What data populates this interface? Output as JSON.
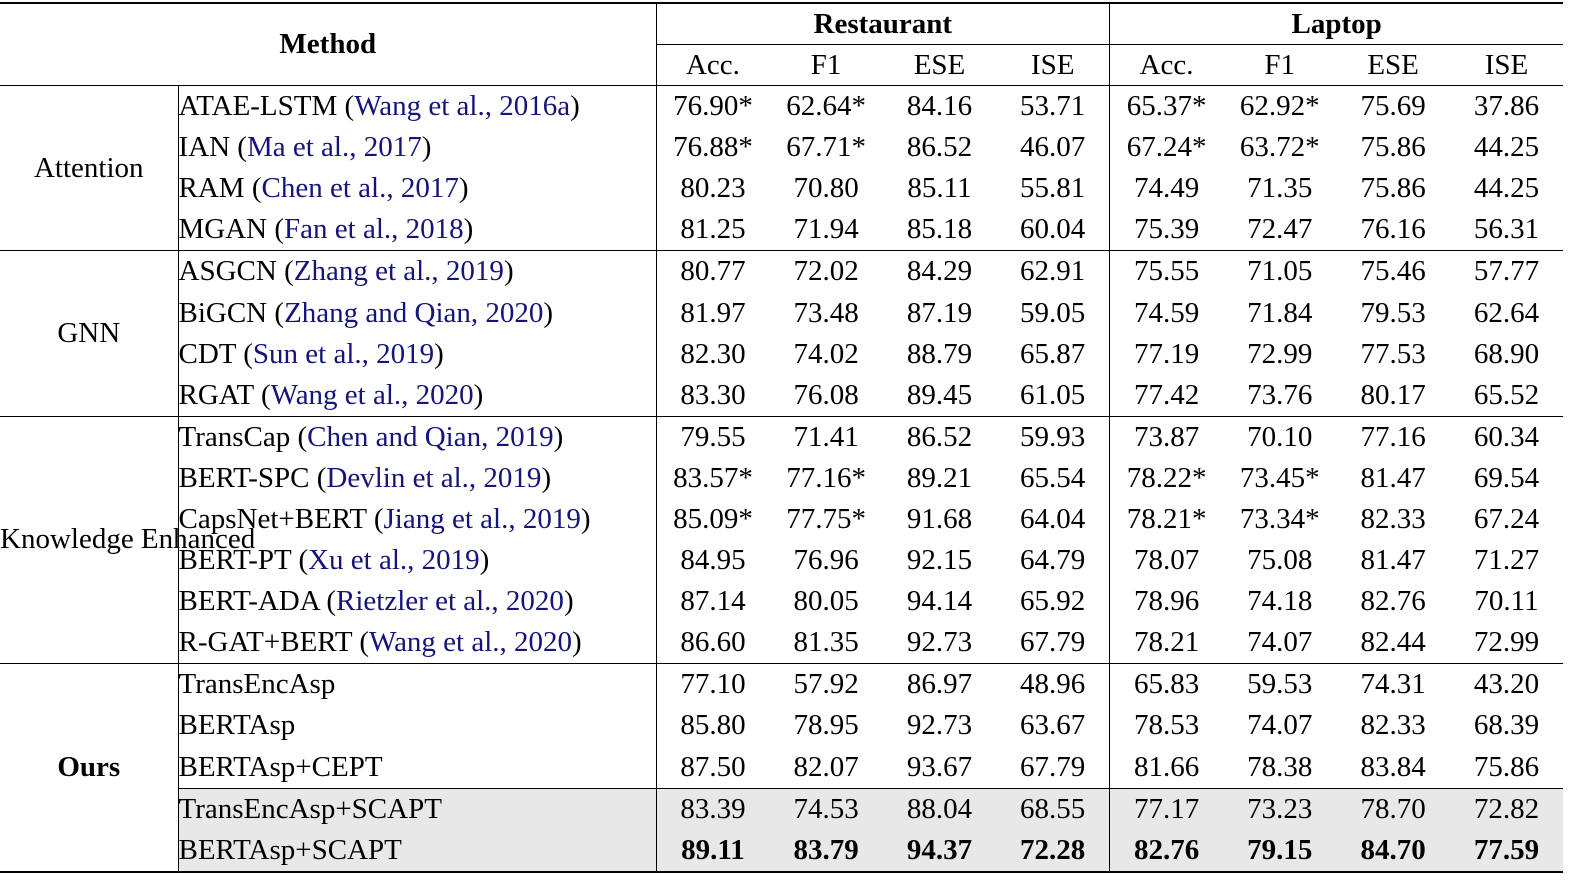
{
  "header": {
    "method_label": "Method",
    "datasets": [
      "Restaurant",
      "Laptop"
    ],
    "metrics": [
      "Acc.",
      "F1",
      "ESE",
      "ISE"
    ]
  },
  "groups": [
    {
      "label": "Attention",
      "bold": false,
      "rows": [
        {
          "name": "ATAE-LSTM",
          "cite": "Wang et al., 2016a",
          "values": [
            "76.90*",
            "62.64*",
            "84.16",
            "53.71",
            "65.37*",
            "62.92*",
            "75.69",
            "37.86"
          ]
        },
        {
          "name": "IAN",
          "cite": "Ma et al., 2017",
          "values": [
            "76.88*",
            "67.71*",
            "86.52",
            "46.07",
            "67.24*",
            "63.72*",
            "75.86",
            "44.25"
          ]
        },
        {
          "name": "RAM",
          "cite": "Chen et al., 2017",
          "values": [
            "80.23",
            "70.80",
            "85.11",
            "55.81",
            "74.49",
            "71.35",
            "75.86",
            "44.25"
          ]
        },
        {
          "name": "MGAN",
          "cite": "Fan et al., 2018",
          "values": [
            "81.25",
            "71.94",
            "85.18",
            "60.04",
            "75.39",
            "72.47",
            "76.16",
            "56.31"
          ]
        }
      ]
    },
    {
      "label": "GNN",
      "bold": false,
      "rows": [
        {
          "name": "ASGCN",
          "cite": "Zhang et al., 2019",
          "values": [
            "80.77",
            "72.02",
            "84.29",
            "62.91",
            "75.55",
            "71.05",
            "75.46",
            "57.77"
          ]
        },
        {
          "name": "BiGCN",
          "cite": "Zhang and Qian, 2020",
          "values": [
            "81.97",
            "73.48",
            "87.19",
            "59.05",
            "74.59",
            "71.84",
            "79.53",
            "62.64"
          ]
        },
        {
          "name": "CDT",
          "cite": "Sun et al., 2019",
          "values": [
            "82.30",
            "74.02",
            "88.79",
            "65.87",
            "77.19",
            "72.99",
            "77.53",
            "68.90"
          ]
        },
        {
          "name": "RGAT",
          "cite": "Wang et al., 2020",
          "values": [
            "83.30",
            "76.08",
            "89.45",
            "61.05",
            "77.42",
            "73.76",
            "80.17",
            "65.52"
          ]
        }
      ]
    },
    {
      "label": "Knowledge Enhanced",
      "bold": false,
      "rows": [
        {
          "name": "TransCap",
          "cite": "Chen and Qian, 2019",
          "values": [
            "79.55",
            "71.41",
            "86.52",
            "59.93",
            "73.87",
            "70.10",
            "77.16",
            "60.34"
          ]
        },
        {
          "name": "BERT-SPC",
          "cite": "Devlin et al., 2019",
          "values": [
            "83.57*",
            "77.16*",
            "89.21",
            "65.54",
            "78.22*",
            "73.45*",
            "81.47",
            "69.54"
          ]
        },
        {
          "name": "CapsNet+BERT",
          "cite": "Jiang et al., 2019",
          "values": [
            "85.09*",
            "77.75*",
            "91.68",
            "64.04",
            "78.21*",
            "73.34*",
            "82.33",
            "67.24"
          ]
        },
        {
          "name": "BERT-PT",
          "cite": "Xu et al., 2019",
          "values": [
            "84.95",
            "76.96",
            "92.15",
            "64.79",
            "78.07",
            "75.08",
            "81.47",
            "71.27"
          ]
        },
        {
          "name": "BERT-ADA",
          "cite": "Rietzler et al., 2020",
          "values": [
            "87.14",
            "80.05",
            "94.14",
            "65.92",
            "78.96",
            "74.18",
            "82.76",
            "70.11"
          ]
        },
        {
          "name": "R-GAT+BERT",
          "cite": "Wang et al., 2020",
          "values": [
            "86.60",
            "81.35",
            "92.73",
            "67.79",
            "78.21",
            "74.07",
            "82.44",
            "72.99"
          ]
        }
      ]
    },
    {
      "label": "Ours",
      "bold": true,
      "rows": [
        {
          "name": "TransEncAsp",
          "cite": "",
          "values": [
            "77.10",
            "57.92",
            "86.97",
            "48.96",
            "65.83",
            "59.53",
            "74.31",
            "43.20"
          ]
        },
        {
          "name": "BERTAsp",
          "cite": "",
          "values": [
            "85.80",
            "78.95",
            "92.73",
            "63.67",
            "78.53",
            "74.07",
            "82.33",
            "68.39"
          ]
        },
        {
          "name": "BERTAsp+CEPT",
          "cite": "",
          "values": [
            "87.50",
            "82.07",
            "93.67",
            "67.79",
            "81.66",
            "78.38",
            "83.84",
            "75.86"
          ]
        },
        {
          "name": "TransEncAsp+SCAPT",
          "cite": "",
          "highlight": true,
          "values": [
            "83.39",
            "74.53",
            "88.04",
            "68.55",
            "77.17",
            "73.23",
            "78.70",
            "72.82"
          ]
        },
        {
          "name": "BERTAsp+SCAPT",
          "cite": "",
          "highlight": true,
          "bold_values": true,
          "values": [
            "89.11",
            "83.79",
            "94.37",
            "72.28",
            "82.76",
            "79.15",
            "84.70",
            "77.59"
          ]
        }
      ]
    }
  ]
}
